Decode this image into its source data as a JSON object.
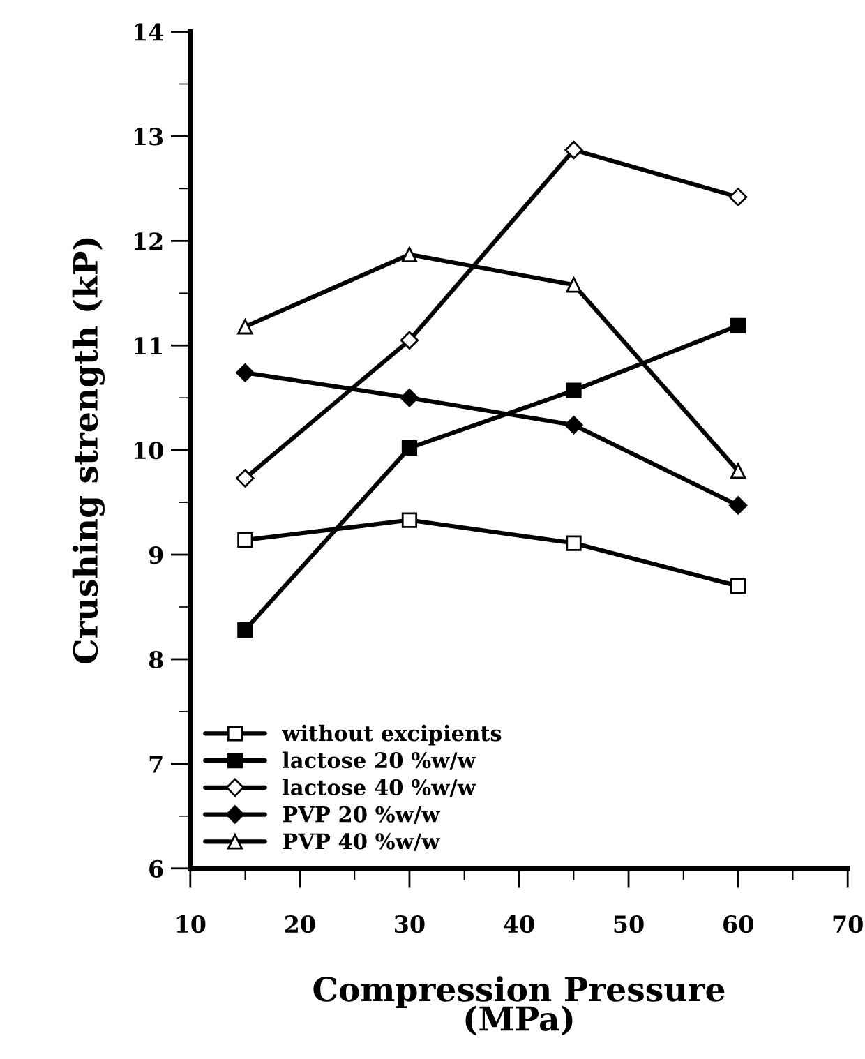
{
  "chart_data": {
    "type": "line",
    "xlabel": "Compression Pressure\n(MPa)",
    "ylabel": "Crushing strength (kP)",
    "x": [
      15,
      30,
      45,
      60
    ],
    "series": [
      {
        "name": "without excipients",
        "color": "#000000",
        "marker": "square",
        "values": [
          9.14,
          9.33,
          9.11,
          8.7
        ]
      },
      {
        "name": "lactose 20 %w/w",
        "color": "#000000",
        "marker": "square",
        "values": [
          8.28,
          10.02,
          10.57,
          11.19
        ]
      },
      {
        "name": "lactose 40 %w/w",
        "color": "#000000",
        "marker": "diamond",
        "values": [
          9.73,
          11.05,
          12.87,
          12.42
        ]
      },
      {
        "name": "PVP 20 %w/w",
        "color": "#000000",
        "marker": "diamond",
        "values": [
          10.74,
          10.5,
          10.24,
          9.47
        ]
      },
      {
        "name": "PVP 40 %w/w",
        "color": "#000000",
        "marker": "triangle",
        "values": [
          11.18,
          11.87,
          11.58,
          9.8
        ]
      }
    ],
    "xlim": [
      10,
      70
    ],
    "xticks": [
      10,
      20,
      30,
      40,
      50,
      60,
      70
    ],
    "ylim": [
      6,
      14
    ],
    "yticks": [
      6,
      7,
      8,
      9,
      10,
      11,
      12,
      13,
      14
    ],
    "grid": false,
    "legend": "bottom left",
    "line_style": "solid"
  }
}
